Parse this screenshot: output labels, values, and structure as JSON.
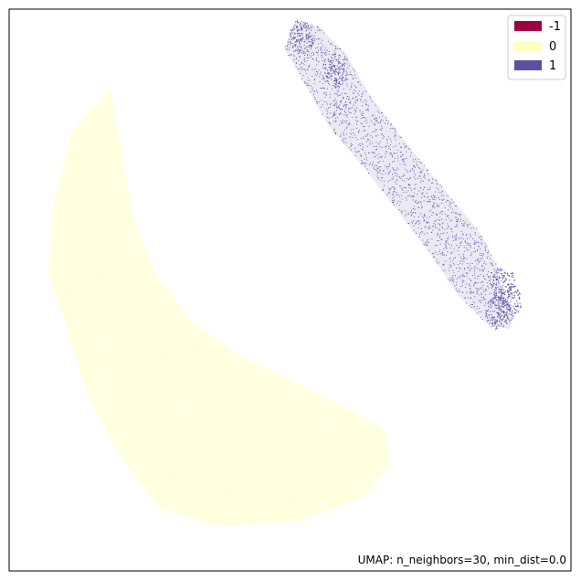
{
  "chart_data": {
    "type": "scatter",
    "title": "",
    "xlabel": "",
    "ylabel": "",
    "xlim": [
      0,
      100
    ],
    "ylim": [
      0,
      100
    ],
    "grid": false,
    "axis_ticks": false,
    "legend_placement": "top-right",
    "annotation": "UMAP: n_neighbors=30, min_dist=0.0",
    "legend": [
      {
        "label": "-1",
        "color": "#9e0142"
      },
      {
        "label": "0",
        "color": "#ffffbf"
      },
      {
        "label": "1",
        "color": "#5e4fa2"
      }
    ],
    "series": [
      {
        "name": "0",
        "color": "#ffffbf",
        "cluster_outline": [
          [
            18,
            86
          ],
          [
            11,
            78
          ],
          [
            8,
            66
          ],
          [
            7,
            53
          ],
          [
            10,
            44
          ],
          [
            14,
            31
          ],
          [
            20,
            20
          ],
          [
            27,
            11
          ],
          [
            37,
            8
          ],
          [
            52,
            9
          ],
          [
            63,
            13
          ],
          [
            68,
            19
          ],
          [
            67,
            25
          ],
          [
            60,
            29
          ],
          [
            50,
            34
          ],
          [
            40,
            39
          ],
          [
            32,
            45
          ],
          [
            26,
            53
          ],
          [
            22,
            63
          ],
          [
            20,
            75
          ]
        ]
      },
      {
        "name": "1",
        "color": "#5e4fa2",
        "cluster_outline": [
          [
            51,
            98
          ],
          [
            55,
            97
          ],
          [
            60,
            92
          ],
          [
            64,
            85
          ],
          [
            70,
            77
          ],
          [
            79,
            66
          ],
          [
            84,
            60
          ],
          [
            87,
            54
          ],
          [
            88,
            49
          ],
          [
            90,
            46
          ],
          [
            89,
            43
          ],
          [
            85,
            44
          ],
          [
            80,
            49
          ],
          [
            76,
            55
          ],
          [
            70,
            63
          ],
          [
            63,
            72
          ],
          [
            57,
            79
          ],
          [
            53,
            86
          ],
          [
            49,
            93
          ]
        ],
        "dense_regions": [
          [
            52,
            95
          ],
          [
            58,
            89
          ],
          [
            89,
            48
          ],
          [
            88,
            51
          ],
          [
            87,
            46
          ]
        ]
      }
    ]
  }
}
